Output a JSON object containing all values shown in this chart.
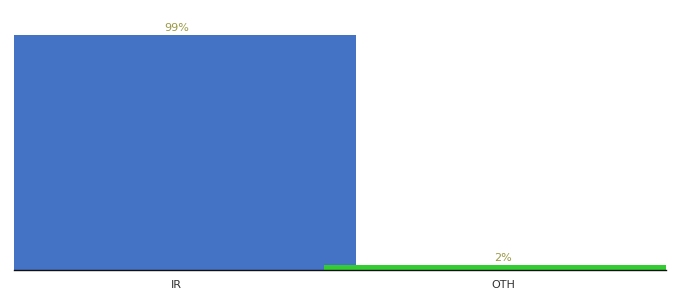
{
  "categories": [
    "IR",
    "OTH"
  ],
  "values": [
    99,
    2
  ],
  "bar_colors": [
    "#4472c4",
    "#33cc33"
  ],
  "label_colors": [
    "#999944",
    "#999944"
  ],
  "labels": [
    "99%",
    "2%"
  ],
  "ylim": [
    0,
    110
  ],
  "background_color": "#ffffff",
  "label_fontsize": 8,
  "tick_fontsize": 8,
  "bar_width": 0.55,
  "x_positions": [
    0.25,
    0.75
  ],
  "xlim": [
    0.0,
    1.0
  ]
}
